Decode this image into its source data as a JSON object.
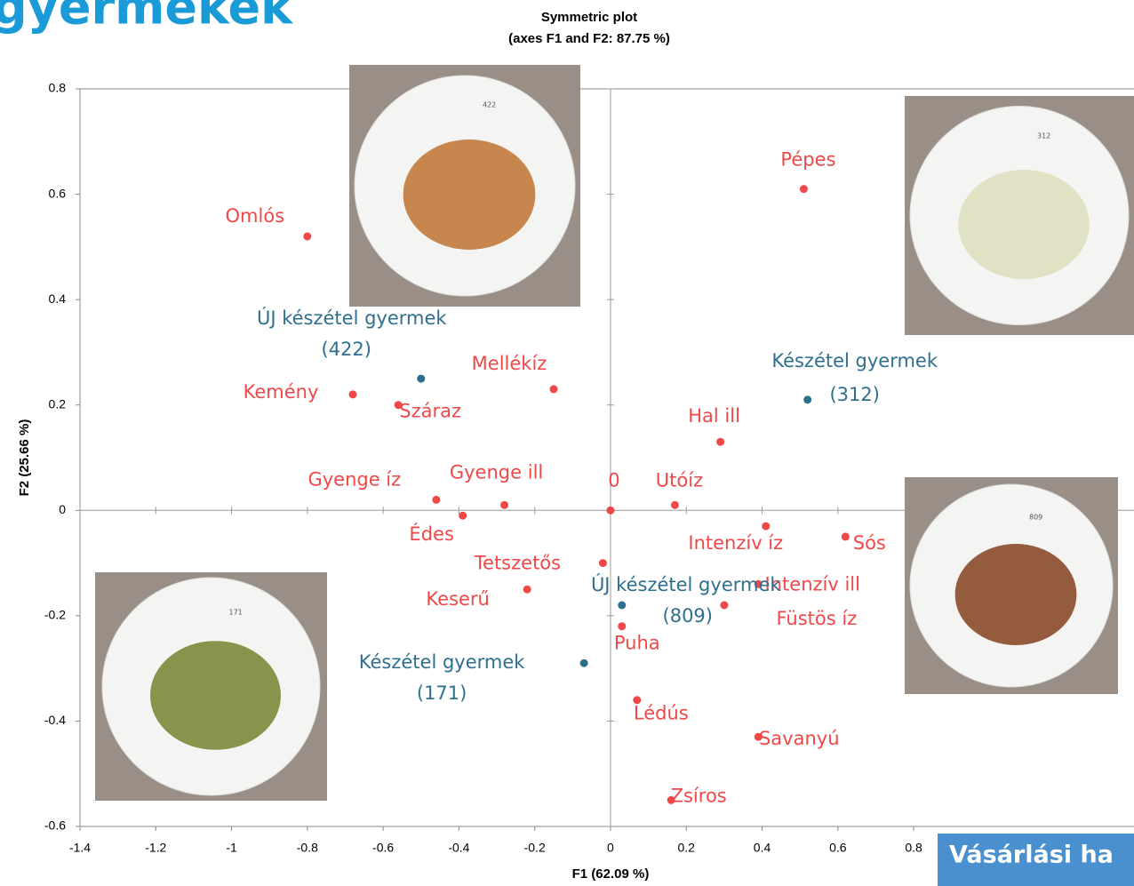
{
  "slide_title": "gyermekek",
  "footer_box": "Vásárlási ha",
  "photos": [
    {
      "label": "422"
    },
    {
      "label": "312"
    },
    {
      "label": "809"
    },
    {
      "label": "171"
    }
  ],
  "chart_data": {
    "type": "scatter",
    "title": [
      "Symmetric plot",
      "(axes F1 and F2: 87.75 %)"
    ],
    "x_label": "F1 (62.09 %)",
    "y_label": "F2 (25.66 %)",
    "xlim": [
      -1.4,
      1.4
    ],
    "ylim": [
      -0.6,
      0.8
    ],
    "xticks": [
      -1.4,
      -1.2,
      -1,
      -0.8,
      -0.6,
      -0.4,
      -0.2,
      0,
      0.2,
      0.4,
      0.6,
      0.8
    ],
    "yticks": [
      -0.6,
      -0.4,
      -0.2,
      0,
      0.2,
      0.4,
      0.6,
      0.8
    ],
    "series": [
      {
        "name": "attributes",
        "color": "#f04848",
        "labels": [
          "Pépes",
          "Omlós",
          "Kemény",
          "Száraz",
          "Mellékíz",
          "Hal ill",
          "Gyenge íz",
          "Édes",
          "Gyenge ill",
          "0",
          "Utóíz",
          "Intenzív  íz",
          "Sós",
          "Tetszetős",
          "Keserű",
          "Intenzív ill",
          "Füstös íz",
          "Puha",
          "Lédús",
          "Savanyú",
          "Zsíros"
        ],
        "x": [
          0.51,
          -0.8,
          -0.68,
          -0.56,
          -0.15,
          0.29,
          -0.46,
          -0.39,
          -0.28,
          0,
          0.17,
          0.41,
          0.62,
          -0.02,
          -0.22,
          0.39,
          0.3,
          0.03,
          0.07,
          0.39,
          0.16
        ],
        "values": [
          0.61,
          0.52,
          0.22,
          0.2,
          0.23,
          0.13,
          0.02,
          -0.01,
          0.01,
          0,
          0.01,
          -0.03,
          -0.05,
          -0.1,
          -0.15,
          -0.14,
          -0.18,
          -0.22,
          -0.36,
          -0.43,
          -0.55
        ]
      },
      {
        "name": "products",
        "color": "#2e6f8e",
        "labels": [
          [
            "ÚJ készétel gyermek",
            "(422)"
          ],
          [
            "Készétel gyermek",
            "(312)"
          ],
          [
            "ÚJ készétel gyermek",
            "(809)"
          ],
          [
            "Készétel gyermek",
            "(171)"
          ]
        ],
        "x": [
          -0.5,
          0.52,
          0.03,
          -0.07
        ],
        "values": [
          0.25,
          0.21,
          -0.18,
          -0.29
        ]
      }
    ]
  }
}
